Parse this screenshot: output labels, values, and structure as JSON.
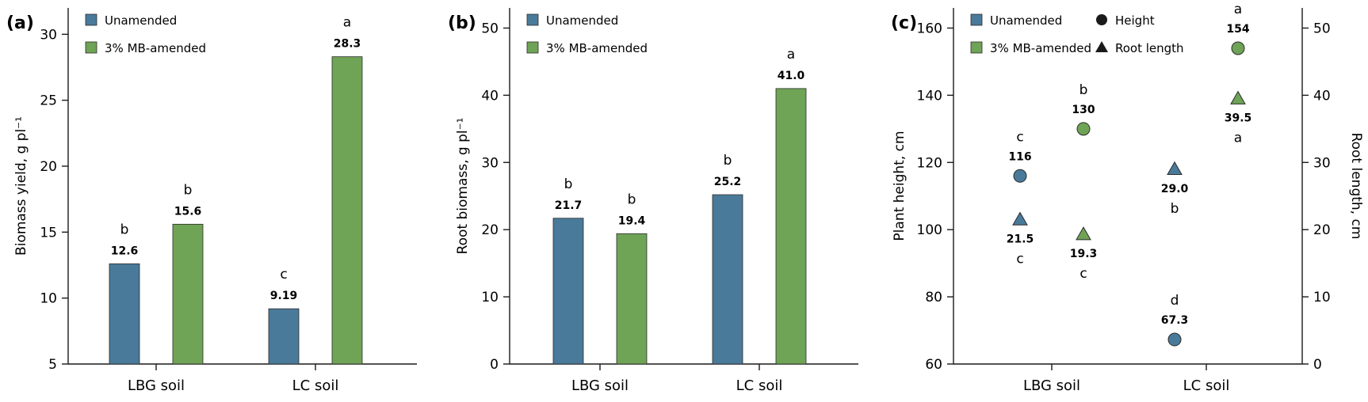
{
  "colors": {
    "unamended": "#4a7a9a",
    "amended": "#6fa356",
    "axis": "#1a1a1a"
  },
  "chart_data": [
    {
      "panel_label": "(a)",
      "type": "bar",
      "categories": [
        "LBG soil",
        "LC soil"
      ],
      "ylabel": "Biomass yield, g pl⁻¹",
      "ylim": [
        5,
        32
      ],
      "yticks": [
        5,
        10,
        15,
        20,
        25,
        30
      ],
      "legend": [
        "Unamended",
        "3% MB-amended"
      ],
      "series": [
        {
          "name": "Unamended",
          "values": [
            12.6,
            9.19
          ],
          "value_labels": [
            "12.6",
            "9.19"
          ],
          "letters": [
            "b",
            "c"
          ]
        },
        {
          "name": "3% MB-amended",
          "values": [
            15.6,
            28.3
          ],
          "value_labels": [
            "15.6",
            "28.3"
          ],
          "letters": [
            "b",
            "a"
          ]
        }
      ]
    },
    {
      "panel_label": "(b)",
      "type": "bar",
      "categories": [
        "LBG soil",
        "LC soil"
      ],
      "ylabel": "Root biomass, g pl⁻¹",
      "ylim": [
        0,
        53
      ],
      "yticks": [
        0,
        10,
        20,
        30,
        40,
        50
      ],
      "legend": [
        "Unamended",
        "3% MB-amended"
      ],
      "series": [
        {
          "name": "Unamended",
          "values": [
            21.7,
            25.2
          ],
          "value_labels": [
            "21.7",
            "25.2"
          ],
          "letters": [
            "b",
            "b"
          ]
        },
        {
          "name": "3% MB-amended",
          "values": [
            19.4,
            41.0
          ],
          "value_labels": [
            "19.4",
            "41.0"
          ],
          "letters": [
            "b",
            "a"
          ]
        }
      ]
    },
    {
      "panel_label": "(c)",
      "type": "scatter",
      "categories": [
        "LBG soil",
        "LC soil"
      ],
      "ylabel": "Plant height, cm",
      "y2label": "Root length, cm",
      "ylim": [
        60,
        166
      ],
      "yticks": [
        60,
        80,
        100,
        120,
        140,
        160
      ],
      "y2lim": [
        0,
        53
      ],
      "y2ticks": [
        0,
        10,
        20,
        30,
        40,
        50
      ],
      "legend": [
        "Unamended",
        "3% MB-amended",
        "Height",
        "Root length"
      ],
      "series": [
        {
          "name": "Height",
          "treatment": "Unamended",
          "axis": "left",
          "marker": "circle",
          "values": [
            116,
            67.3
          ],
          "value_labels": [
            "116",
            "67.3"
          ],
          "letters": [
            "c",
            "d"
          ]
        },
        {
          "name": "Height",
          "treatment": "3% MB-amended",
          "axis": "left",
          "marker": "circle",
          "values": [
            130,
            154
          ],
          "value_labels": [
            "130",
            "154"
          ],
          "letters": [
            "b",
            "a"
          ]
        },
        {
          "name": "Root length",
          "treatment": "Unamended",
          "axis": "right",
          "marker": "triangle",
          "values": [
            21.5,
            29.0
          ],
          "value_labels": [
            "21.5",
            "29.0"
          ],
          "letters": [
            "c",
            "b"
          ]
        },
        {
          "name": "Root length",
          "treatment": "3% MB-amended",
          "axis": "right",
          "marker": "triangle",
          "values": [
            19.3,
            39.5
          ],
          "value_labels": [
            "19.3",
            "39.5"
          ],
          "letters": [
            "c",
            "a"
          ]
        }
      ]
    }
  ]
}
